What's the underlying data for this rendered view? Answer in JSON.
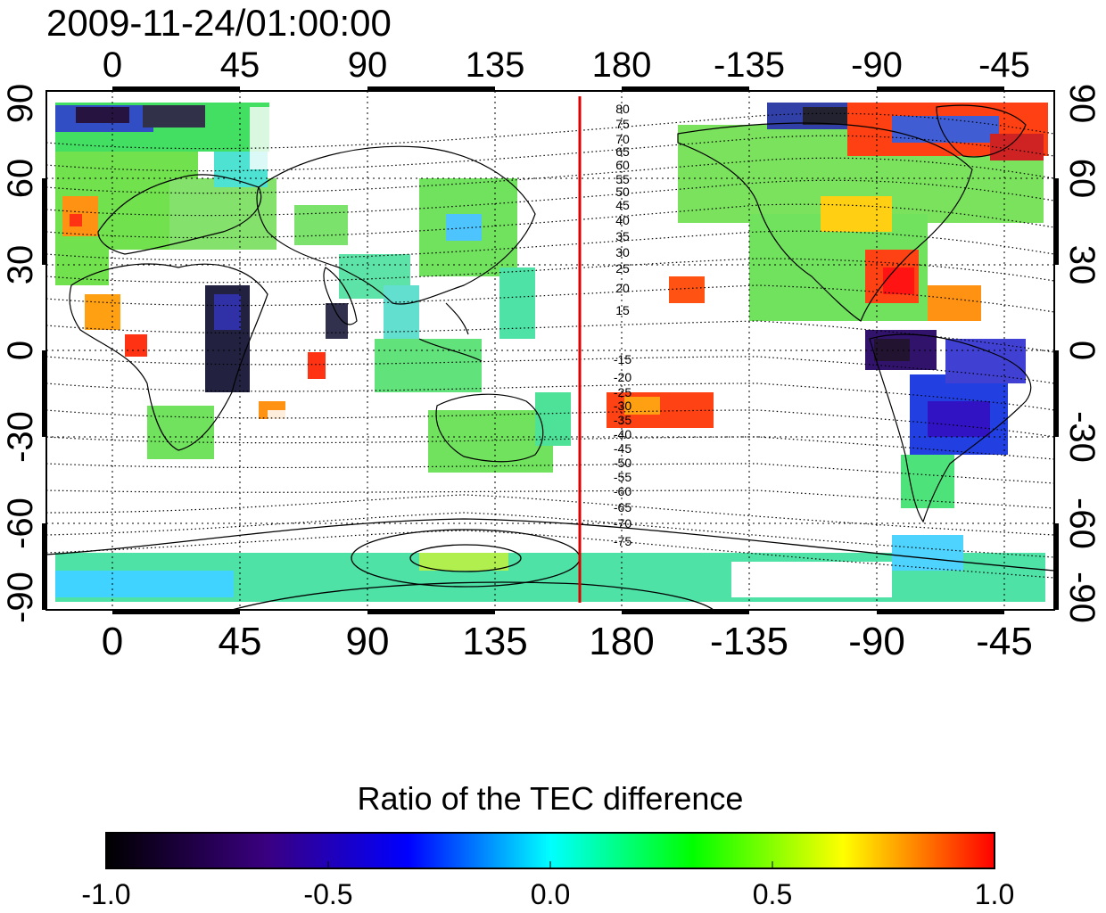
{
  "title": "2009-11-24/01:00:00",
  "axes": {
    "top_lon_ticks": [
      "0",
      "45",
      "90",
      "135",
      "180",
      "-135",
      "-90",
      "-45"
    ],
    "bottom_lon_ticks": [
      "0",
      "45",
      "90",
      "135",
      "180",
      "-135",
      "-90",
      "-45"
    ],
    "left_lat_ticks": [
      "90",
      "60",
      "30",
      "0",
      "-30",
      "-60",
      "-90"
    ],
    "right_lat_ticks": [
      "90",
      "60",
      "30",
      "0",
      "-30",
      "-60",
      "-90"
    ]
  },
  "contour_labels_north": [
    "80",
    "75",
    "70",
    "65",
    "60",
    "55",
    "50",
    "45",
    "40",
    "35",
    "30",
    "25",
    "20",
    "15"
  ],
  "contour_labels_south": [
    "-15",
    "-20",
    "-25",
    "-30",
    "-35",
    "-40",
    "-45",
    "-50",
    "-55",
    "-60",
    "-65",
    "-70",
    "-75"
  ],
  "terminator_color": "#dd0000",
  "colorbar": {
    "title": "Ratio of the TEC difference",
    "ticks": [
      "-1.0",
      "-0.5",
      "0.0",
      "0.5",
      "1.0"
    ],
    "stops": [
      "#000000",
      "#3a0080",
      "#0000ff",
      "#00ffff",
      "#00ff00",
      "#ffff00",
      "#ff0000"
    ]
  }
}
